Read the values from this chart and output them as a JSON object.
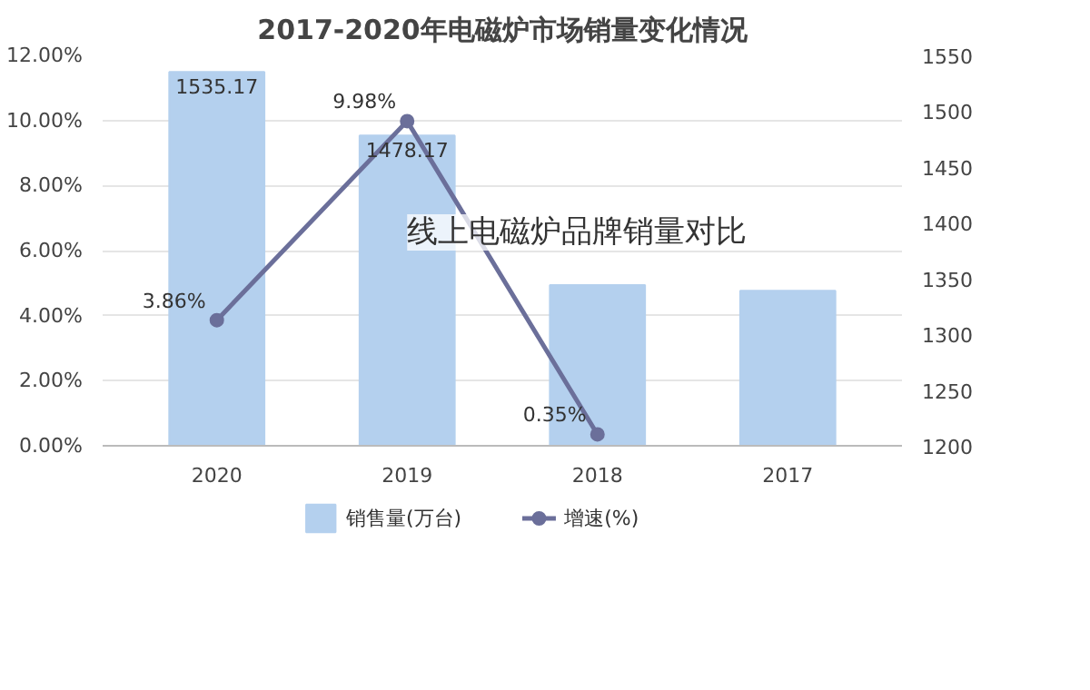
{
  "chart_data": {
    "type": "bar",
    "title": "2017-2020年电磁炉市场销量变化情况",
    "categories": [
      "2020",
      "2019",
      "2018",
      "2017"
    ],
    "series": [
      {
        "name": "销售量(万台)",
        "axis": "y2",
        "color": "#b4d0ee",
        "values": [
          1535.17,
          1478.17,
          1344,
          1339
        ],
        "value_labels": [
          "1535.17",
          "1478.17",
          null,
          null
        ]
      },
      {
        "name": "增速(%)",
        "type": "line",
        "axis": "y",
        "color": "#6b6f9a",
        "marker": "circle",
        "values": [
          3.86,
          9.98,
          0.35,
          null
        ],
        "value_labels": [
          "3.86%",
          "9.98%",
          "0.35%",
          null
        ]
      }
    ],
    "ylim": [
      0,
      12
    ],
    "yticks": [
      {
        "value": 0,
        "label": "0.00%"
      },
      {
        "value": 2,
        "label": "2.00%"
      },
      {
        "value": 4,
        "label": "4.00%"
      },
      {
        "value": 6,
        "label": "6.00%"
      },
      {
        "value": 8,
        "label": "8.00%"
      },
      {
        "value": 10,
        "label": "10.00%"
      },
      {
        "value": 12,
        "label": "12.00%"
      }
    ],
    "y2lim": [
      1200,
      1550
    ],
    "y2ticks": [
      1200,
      1250,
      1300,
      1350,
      1400,
      1450,
      1500,
      1550
    ],
    "grid": "y",
    "legend": "bottom",
    "annotations": [
      "线上电磁炉品牌销量对比"
    ]
  }
}
